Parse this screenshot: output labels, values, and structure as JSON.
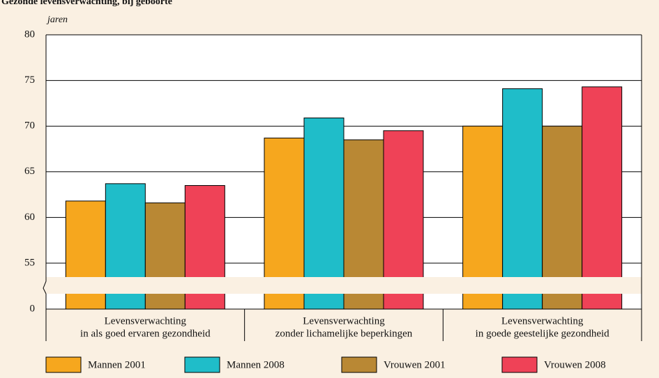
{
  "chart_data": {
    "type": "bar",
    "title": "Gezonde levensverwachting, bij geboorte",
    "y_label": "jaren",
    "categories": [
      [
        "Levensverwachting",
        "in als goed ervaren gezondheid"
      ],
      [
        "Levensverwachting",
        "zonder lichamelijke beperkingen"
      ],
      [
        "Levensverwachting",
        "in goede geestelijke gezondheid"
      ]
    ],
    "series": [
      {
        "name": "Mannen 2001",
        "color": "#f6a71e",
        "values": [
          61.8,
          68.7,
          70.0
        ]
      },
      {
        "name": "Mannen 2008",
        "color": "#1fbdc9",
        "values": [
          63.7,
          70.9,
          74.1
        ]
      },
      {
        "name": "Vrouwen 2001",
        "color": "#b98834",
        "values": [
          61.6,
          68.5,
          70.0
        ]
      },
      {
        "name": "Vrouwen 2008",
        "color": "#ef4257",
        "values": [
          63.5,
          69.5,
          74.3
        ]
      }
    ],
    "ylim": [
      0,
      80
    ],
    "yticks": [
      0,
      55,
      60,
      65,
      70,
      75,
      80
    ],
    "axis_break": true,
    "grid": true,
    "legend": "bottom"
  }
}
